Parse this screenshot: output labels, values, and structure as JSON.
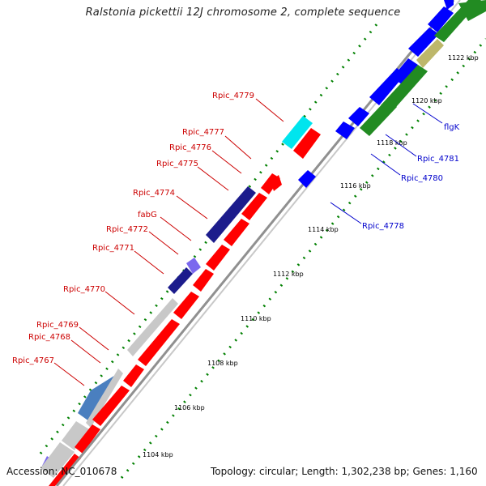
{
  "title": "Ralstonia pickettii 12J chromosome 2, complete sequence",
  "footer": {
    "accession": "Accession: NC_010678",
    "summary": "Topology: circular; Length: 1,302,238 bp; Genes: 1,160"
  },
  "colors": {
    "reverse_label": "#cc0000",
    "forward_label": "#0000cc",
    "red_gene": "#ff0000",
    "blue_gene": "#0000ff",
    "green_gene": "#228b22",
    "navy_gene": "#1c1c8c",
    "grey_gene": "#c8c8c8",
    "tick": "#008000",
    "backbone": "#909090"
  },
  "scale_labels": [
    "1104 kbp",
    "1106 kbp",
    "1108 kbp",
    "1110 kbp",
    "1112 kbp",
    "1114 kbp",
    "1116 kbp",
    "1118 kbp",
    "1120 kbp",
    "1122 kbp"
  ],
  "reverse_genes": [
    "Rpic_4779",
    "Rpic_4777",
    "Rpic_4776",
    "Rpic_4775",
    "Rpic_4774",
    "fabG",
    "Rpic_4772",
    "Rpic_4771",
    "Rpic_4770",
    "Rpic_4769",
    "Rpic_4768",
    "Rpic_4767"
  ],
  "forward_genes": [
    "flgK",
    "Rpic_4781",
    "Rpic_4780",
    "Rpic_4778"
  ]
}
